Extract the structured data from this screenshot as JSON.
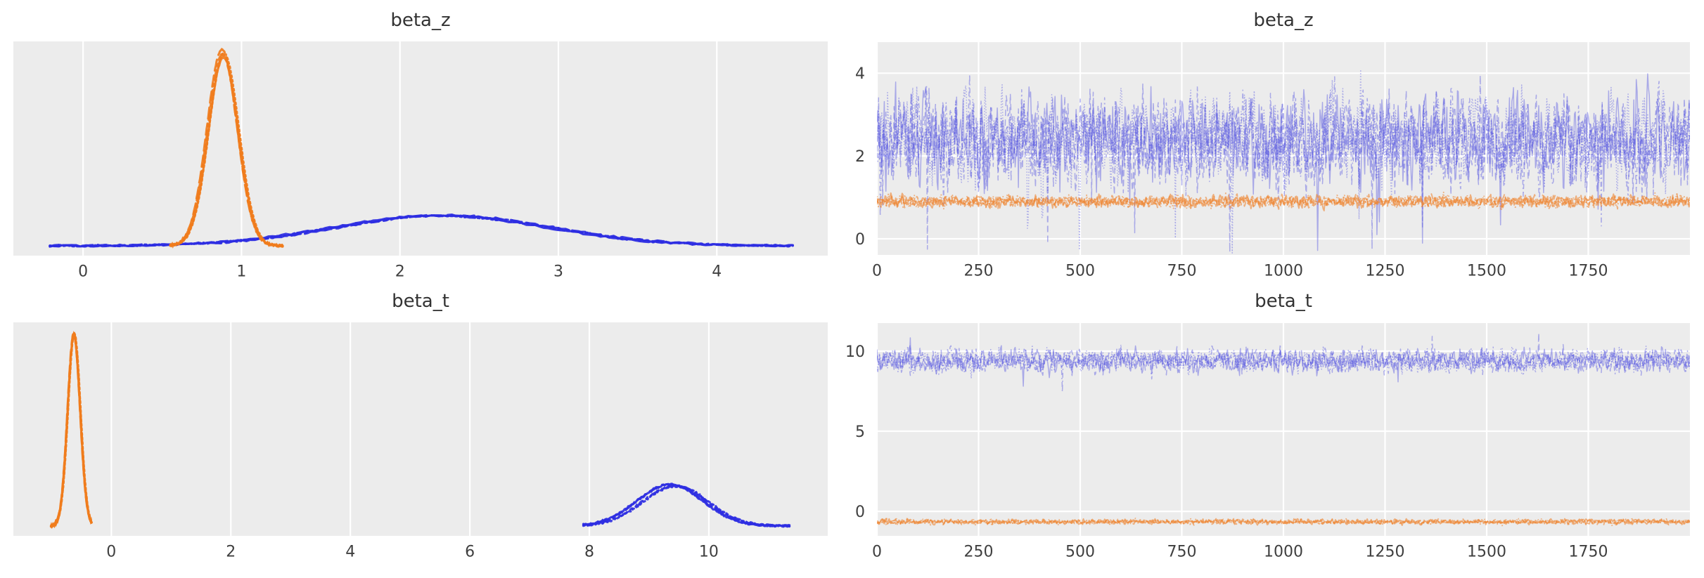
{
  "figure": {
    "background": "#ffffff",
    "panel_bg": "#ececec",
    "grid_color": "#ffffff",
    "tick_color": "#3f3f3f",
    "title_color": "#333333",
    "blue": "#2e2ee2",
    "orange": "#f07c1c",
    "trace_blue": "#4d4de0",
    "trace_orange": "#ef8532"
  },
  "chart_data": [
    {
      "id": "beta_z_density",
      "type": "kde",
      "title": "beta_z",
      "position": "top-left",
      "xlim": [
        -0.44,
        4.7
      ],
      "xticks": [
        0,
        1,
        2,
        3,
        4
      ],
      "grid": "vertical-only",
      "chains": 4,
      "chain_linestyles": [
        "solid",
        "dashed",
        "dashdot",
        "dotted"
      ],
      "series": [
        {
          "name": "blue",
          "color_key": "blue",
          "mean": 2.27,
          "sd": 0.68,
          "x_start": -0.21,
          "x_end": 4.48,
          "peak_rel": 0.155
        },
        {
          "name": "orange",
          "color_key": "orange",
          "mean": 0.88,
          "sd": 0.095,
          "x_start": 0.55,
          "x_end": 1.26,
          "peak_rel": 1.0
        }
      ]
    },
    {
      "id": "beta_z_trace",
      "type": "line",
      "title": "beta_z",
      "position": "top-right",
      "xlim": [
        0,
        2000
      ],
      "xticks": [
        0,
        250,
        500,
        750,
        1000,
        1250,
        1500,
        1750
      ],
      "ylim": [
        -0.39,
        4.75
      ],
      "yticks": [
        0,
        2,
        4
      ],
      "grid": "both",
      "n_iterations": 2000,
      "chains": 4,
      "chain_linestyles": [
        "solid",
        "dashed",
        "dashdot",
        "dotted"
      ],
      "series": [
        {
          "name": "blue",
          "color_key": "blue",
          "mean": 2.4,
          "sd": 0.58,
          "clamp": [
            -0.42,
            4.42
          ],
          "spike_prob": 0.012,
          "spike_dir": -1,
          "spike_mag": 1.8
        },
        {
          "name": "orange",
          "color_key": "orange",
          "mean": 0.9,
          "sd": 0.075,
          "clamp": [
            0.55,
            1.2
          ],
          "spike_prob": 0,
          "spike_dir": 0,
          "spike_mag": 0
        }
      ]
    },
    {
      "id": "beta_t_density",
      "type": "kde",
      "title": "beta_t",
      "position": "bottom-left",
      "xlim": [
        -1.64,
        11.99
      ],
      "xticks": [
        0,
        2,
        4,
        6,
        8,
        10
      ],
      "grid": "vertical-only",
      "chains": 4,
      "chain_linestyles": [
        "solid",
        "dashed",
        "dashdot",
        "dotted"
      ],
      "series": [
        {
          "name": "orange",
          "color_key": "orange",
          "mean": -0.62,
          "sd": 0.105,
          "x_start": -1.01,
          "x_end": -0.33,
          "peak_rel": 1.0
        },
        {
          "name": "blue",
          "color_key": "blue",
          "mean": 9.4,
          "sd": 0.55,
          "x_start": 7.9,
          "x_end": 11.35,
          "peak_rel": 0.21
        }
      ]
    },
    {
      "id": "beta_t_trace",
      "type": "line",
      "title": "beta_t",
      "position": "bottom-right",
      "xlim": [
        0,
        2000
      ],
      "xticks": [
        0,
        250,
        500,
        750,
        1000,
        1250,
        1500,
        1750
      ],
      "ylim": [
        -1.53,
        11.75
      ],
      "yticks": [
        0,
        5,
        10
      ],
      "grid": "both",
      "n_iterations": 2000,
      "chains": 4,
      "chain_linestyles": [
        "solid",
        "dashed",
        "dashdot",
        "dotted"
      ],
      "series": [
        {
          "name": "blue",
          "color_key": "blue",
          "mean": 9.4,
          "sd": 0.38,
          "clamp": [
            7.45,
            11.4
          ],
          "spike_prob": 0.008,
          "spike_dir": 0,
          "spike_mag": 1.2
        },
        {
          "name": "orange",
          "color_key": "orange",
          "mean": -0.65,
          "sd": 0.08,
          "clamp": [
            -1.05,
            -0.3
          ],
          "spike_prob": 0,
          "spike_dir": 0,
          "spike_mag": 0
        }
      ]
    }
  ]
}
